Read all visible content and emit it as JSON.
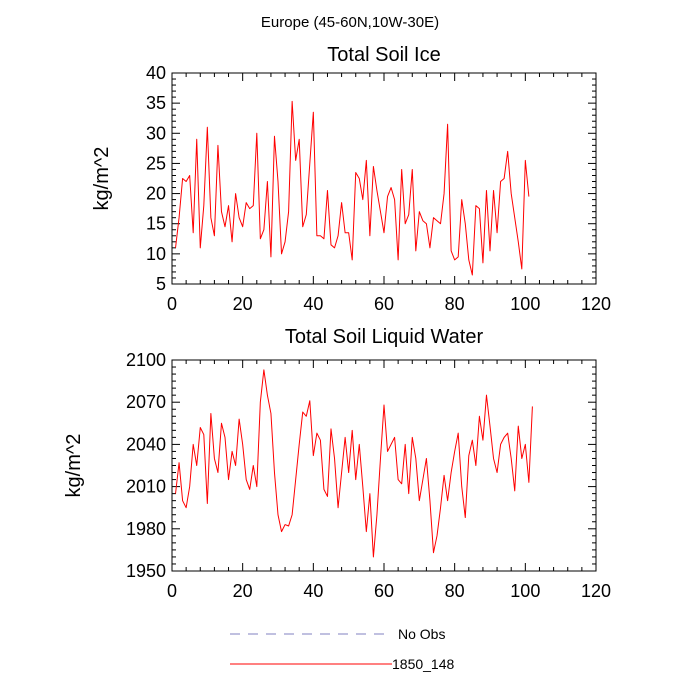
{
  "figure": {
    "suptitle": "Europe (45-60N,10W-30E)"
  },
  "chart_data": [
    {
      "type": "line",
      "title": "Total Soil Ice",
      "xlabel": "",
      "ylabel": "kg/m^2",
      "xlim": [
        0,
        120
      ],
      "ylim": [
        5,
        40
      ],
      "xticks": [
        0,
        20,
        40,
        60,
        80,
        100,
        120
      ],
      "yticks": [
        5,
        10,
        15,
        20,
        25,
        30,
        35,
        40
      ],
      "grid": false,
      "series": [
        {
          "name": "1850_148",
          "color": "#ff0000",
          "x_start": 1,
          "x_step": 1,
          "values": [
            11,
            16,
            22.5,
            22,
            23,
            13.5,
            29,
            11,
            18,
            31,
            16,
            13,
            28,
            17,
            14.5,
            18,
            12,
            20,
            16,
            14.5,
            18.5,
            17.5,
            18,
            30,
            12.5,
            14,
            22,
            9.5,
            29.5,
            22,
            10,
            12,
            17,
            35.3,
            25.5,
            29,
            14.5,
            16.5,
            25,
            33.5,
            13,
            13,
            12.5,
            20.5,
            11.5,
            11,
            13,
            18.5,
            13.5,
            13.5,
            9,
            23.5,
            22.5,
            19,
            25.5,
            13,
            24.5,
            20.5,
            17,
            13.5,
            19.5,
            21,
            19,
            9,
            24,
            15,
            16.5,
            24,
            10.5,
            17,
            15.5,
            15,
            11,
            16,
            15.5,
            15,
            20,
            31.5,
            10.5,
            9,
            9.5,
            19,
            15,
            9,
            6.5,
            18,
            17.5,
            8.5,
            20.5,
            10.5,
            20.5,
            13.5,
            22,
            22.5,
            27,
            20,
            16,
            12,
            7.5,
            25.5,
            19.5
          ]
        }
      ]
    },
    {
      "type": "line",
      "title": "Total Soil Liquid Water",
      "xlabel": "",
      "ylabel": "kg/m^2",
      "xlim": [
        0,
        120
      ],
      "ylim": [
        1950,
        2100
      ],
      "xticks": [
        0,
        20,
        40,
        60,
        80,
        100,
        120
      ],
      "yticks": [
        1950,
        1980,
        2010,
        2040,
        2070,
        2100
      ],
      "grid": false,
      "series": [
        {
          "name": "1850_148",
          "color": "#ff0000",
          "x_start": 1,
          "x_step": 1,
          "values": [
            2005,
            2027,
            2000,
            1995,
            2010,
            2040,
            2025,
            2052,
            2047,
            1998,
            2062,
            2030,
            2020,
            2055,
            2045,
            2015,
            2035,
            2025,
            2058,
            2040,
            2015,
            2008,
            2025,
            2010,
            2070,
            2093,
            2075,
            2062,
            2020,
            1990,
            1978,
            1983,
            1982,
            1990,
            2015,
            2040,
            2063,
            2060,
            2071,
            2032,
            2048,
            2043,
            2008,
            2003,
            2051,
            2030,
            1995,
            2020,
            2045,
            2020,
            2050,
            2015,
            2040,
            2010,
            1978,
            2005,
            1960,
            1990,
            2030,
            2068,
            2035,
            2040,
            2045,
            2015,
            2012,
            2040,
            2005,
            2045,
            2030,
            2000,
            2015,
            2030,
            2000,
            1963,
            1975,
            1995,
            2018,
            2000,
            2020,
            2035,
            2048,
            2010,
            1988,
            2032,
            2043,
            2025,
            2060,
            2043,
            2075,
            2053,
            2030,
            2020,
            2040,
            2045,
            2048,
            2030,
            2007,
            2053,
            2030,
            2040,
            2013,
            2067
          ]
        }
      ]
    }
  ],
  "legend": {
    "items": [
      {
        "label": "No Obs",
        "color": "#8080c0",
        "style": "dashed"
      },
      {
        "label": "1850_148",
        "color": "#ff0000",
        "style": "solid"
      }
    ]
  }
}
